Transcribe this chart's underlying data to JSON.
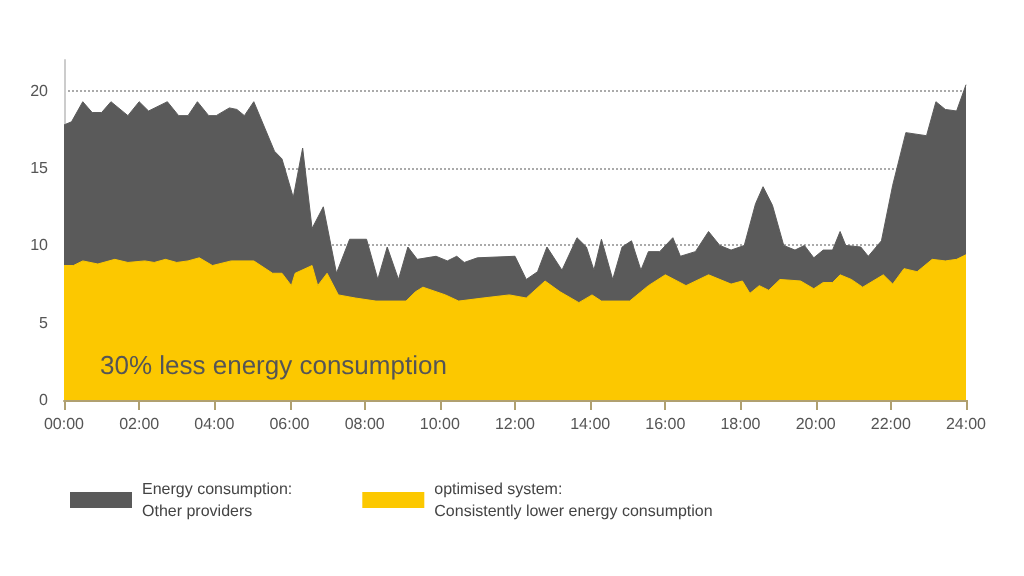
{
  "chart_data": {
    "type": "area",
    "xlim": [
      0,
      24
    ],
    "ylim": [
      0,
      22
    ],
    "xticks": [
      {
        "value": 0,
        "label": "00:00"
      },
      {
        "value": 2,
        "label": "02:00"
      },
      {
        "value": 4,
        "label": "04:00"
      },
      {
        "value": 6,
        "label": "06:00"
      },
      {
        "value": 8,
        "label": "08:00"
      },
      {
        "value": 10,
        "label": "10:00"
      },
      {
        "value": 12,
        "label": "12:00"
      },
      {
        "value": 14,
        "label": "14:00"
      },
      {
        "value": 16,
        "label": "16:00"
      },
      {
        "value": 18,
        "label": "18:00"
      },
      {
        "value": 20,
        "label": "20:00"
      },
      {
        "value": 22,
        "label": "22:00"
      },
      {
        "value": 24,
        "label": "24:00"
      }
    ],
    "yticks": [
      0,
      5,
      10,
      15,
      20
    ],
    "grid": "y",
    "legend": "bottom",
    "marker": "none",
    "annotations": [
      "30% less energy consumption"
    ],
    "series": [
      {
        "name": "Energy consumption:\nOther providers",
        "color": "#5a5a5a",
        "x": [
          0,
          0.2,
          0.5,
          0.75,
          1.0,
          1.25,
          1.7,
          2.0,
          2.25,
          2.75,
          3.05,
          3.3,
          3.55,
          3.85,
          4.05,
          4.4,
          4.6,
          4.8,
          5.05,
          5.6,
          5.8,
          6.1,
          6.35,
          6.6,
          6.9,
          7.25,
          7.6,
          8.05,
          8.35,
          8.6,
          8.9,
          9.15,
          9.4,
          9.9,
          10.2,
          10.45,
          10.65,
          11.0,
          12.0,
          12.3,
          12.6,
          12.85,
          13.25,
          13.65,
          13.9,
          14.1,
          14.3,
          14.6,
          14.85,
          15.1,
          15.35,
          15.55,
          15.85,
          16.2,
          16.4,
          16.8,
          17.15,
          17.45,
          17.75,
          18.1,
          18.4,
          18.6,
          18.85,
          19.15,
          19.45,
          19.7,
          19.95,
          20.2,
          20.45,
          20.65,
          20.8,
          21.2,
          21.4,
          21.75,
          22.05,
          22.4,
          22.95,
          23.2,
          23.45,
          23.75,
          24
        ],
        "values": [
          17.8,
          18.0,
          19.3,
          18.6,
          18.6,
          19.3,
          18.4,
          19.3,
          18.7,
          19.3,
          18.4,
          18.4,
          19.3,
          18.4,
          18.4,
          18.9,
          18.8,
          18.4,
          19.3,
          16.1,
          15.6,
          13.1,
          16.3,
          11.1,
          12.5,
          8.2,
          10.4,
          10.4,
          7.8,
          9.9,
          7.8,
          9.9,
          9.1,
          9.3,
          9.0,
          9.3,
          8.9,
          9.2,
          9.3,
          7.8,
          8.3,
          9.9,
          8.4,
          10.5,
          9.9,
          8.4,
          10.4,
          7.8,
          9.9,
          10.3,
          8.4,
          9.6,
          9.6,
          10.5,
          9.3,
          9.6,
          10.9,
          10.0,
          9.7,
          10.0,
          12.7,
          13.8,
          12.6,
          10.0,
          9.7,
          10.0,
          9.2,
          9.7,
          9.7,
          10.9,
          10.0,
          9.9,
          9.3,
          10.3,
          13.9,
          17.3,
          17.1,
          19.3,
          18.8,
          18.7,
          20.4
        ]
      },
      {
        "name": "optimised system:\nConsistently lower energy consumption",
        "color": "#fcc800",
        "x": [
          0,
          0.25,
          0.5,
          0.9,
          1.35,
          1.7,
          2.15,
          2.4,
          2.7,
          3.0,
          3.3,
          3.6,
          3.95,
          4.45,
          5.05,
          5.55,
          5.8,
          6.05,
          6.15,
          6.6,
          6.75,
          7.0,
          7.3,
          7.75,
          8.3,
          9.1,
          9.35,
          9.55,
          10.15,
          10.5,
          11.15,
          11.85,
          12.3,
          12.8,
          13.2,
          13.7,
          14.05,
          14.3,
          15.05,
          15.55,
          16.0,
          16.55,
          17.15,
          17.75,
          18.05,
          18.25,
          18.5,
          18.75,
          19.05,
          19.6,
          19.95,
          20.2,
          20.45,
          20.65,
          20.95,
          21.25,
          21.8,
          22.05,
          22.35,
          22.7,
          23.1,
          23.45,
          23.75,
          24
        ],
        "values": [
          8.7,
          8.7,
          9.0,
          8.8,
          9.1,
          8.9,
          9.0,
          8.9,
          9.1,
          8.9,
          9.0,
          9.2,
          8.7,
          9.0,
          9.0,
          8.2,
          8.2,
          7.4,
          8.2,
          8.7,
          7.4,
          8.2,
          6.8,
          6.6,
          6.4,
          6.4,
          7.0,
          7.3,
          6.8,
          6.4,
          6.6,
          6.8,
          6.6,
          7.7,
          7.0,
          6.3,
          6.8,
          6.4,
          6.4,
          7.4,
          8.1,
          7.4,
          8.1,
          7.5,
          7.7,
          6.9,
          7.4,
          7.1,
          7.8,
          7.7,
          7.2,
          7.6,
          7.6,
          8.1,
          7.8,
          7.3,
          8.1,
          7.5,
          8.5,
          8.3,
          9.1,
          9.0,
          9.1,
          9.4
        ]
      }
    ]
  }
}
